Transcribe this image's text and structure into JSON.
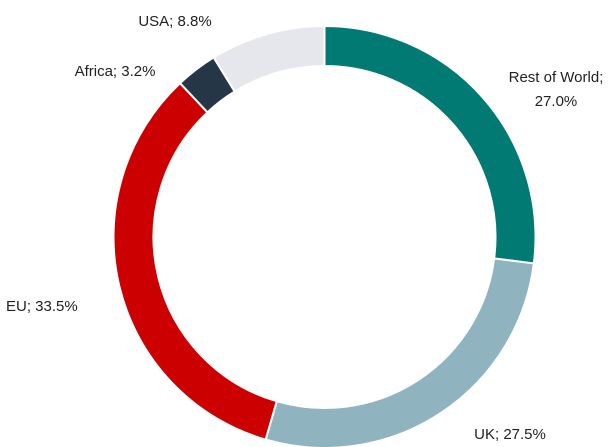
{
  "chart_data": {
    "type": "donut",
    "values": [
      27.0,
      27.5,
      33.5,
      3.2,
      8.8
    ],
    "value_labels": [
      "Rest of World; 27.0%",
      "UK; 27.5%",
      "EU; 33.5%",
      "Africa; 3.2%",
      "USA; 8.8%"
    ],
    "colors": [
      "#007a73",
      "#8fb4bf",
      "#cc0000",
      "#253746",
      "#e6e7ec"
    ]
  }
}
